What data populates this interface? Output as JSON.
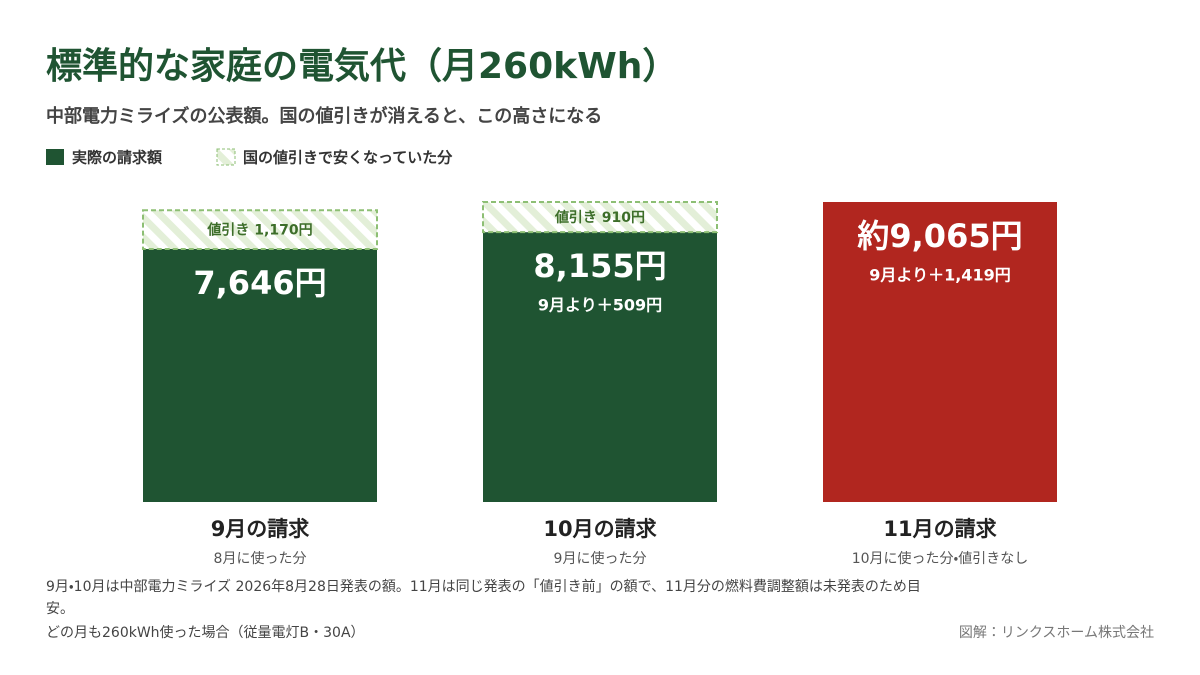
{
  "chart_data": {
    "type": "stacked-bar",
    "title": "標準的な家庭の電気代（月260kWh）",
    "subtitle": "中部電力ミライズの公表額。国の値引きが消えると、この高さになる",
    "categories": [
      "9月の請求",
      "10月の請求",
      "11月の請求"
    ],
    "category_notes": [
      "8月に使った分",
      "9月に使った分",
      "10月に使った分・値引きなし"
    ],
    "series": [
      {
        "name": "実際の請求額",
        "color": "#1f5432",
        "colors": [
          "#1f5432",
          "#1f5432",
          "#b1261f"
        ],
        "values": [
          7646,
          8155,
          9065
        ],
        "value_labels": [
          "7,646円",
          "8,155円",
          "約9,065円"
        ]
      },
      {
        "name": "国の値引きで安くなっていた分",
        "color": "#e3efd8",
        "border_color": "#8dbf74",
        "values": [
          1170,
          910,
          null
        ],
        "value_labels": [
          "値引き 1,170円",
          "値引き 910円",
          null
        ]
      }
    ],
    "annotations": [
      null,
      "9月より＋509円",
      "9月より＋1,419円"
    ],
    "notes": [
      "9月・10月は中部電力ミライズ 2026年8月28日発表の額。11月は同じ発表の「値引き前」の額で、11月分の燃料費調整額は未発表のため目安。",
      "どの月も260kWh使った場合（従量電灯B・30A）"
    ],
    "credit": "図解：リンクスホーム株式会社"
  }
}
